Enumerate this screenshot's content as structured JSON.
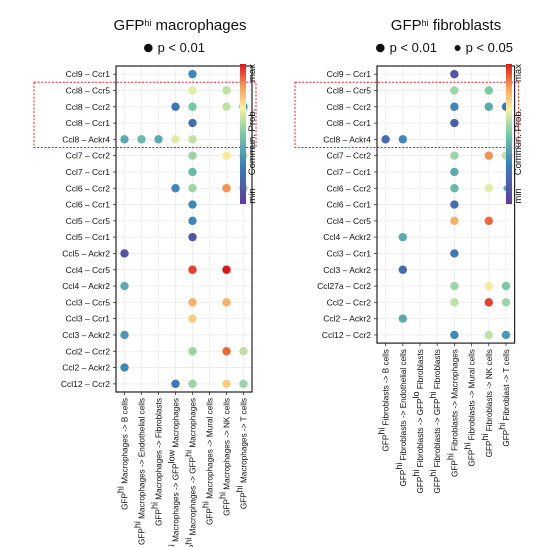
{
  "colors": {
    "low": "#5e3c99",
    "mid": "#f7f3a8",
    "high": "#d7191c",
    "grid": "#ececec",
    "highlight": "#e02020"
  },
  "colorbar": {
    "max_label": "max",
    "min_label": "min",
    "title": "Commun. Prob."
  },
  "chart_data": [
    {
      "type": "scatter",
      "title": {
        "pre": "GFP",
        "sup": "hi",
        "post": " macrophages"
      },
      "legend": [
        {
          "marker": "large",
          "label": "p < 0.01"
        }
      ],
      "rows": [
        "Ccl9 – Ccr1",
        "Ccl8 – Ccr5",
        "Ccl8 – Ccr2",
        "Ccl8 – Ccr1",
        "Ccl8 – Ackr4",
        "Ccl7 – Ccr2",
        "Ccl7 – Ccr1",
        "Ccl6 – Ccr2",
        "Ccl6 – Ccr1",
        "Ccl5 – Ccr5",
        "Ccl5 – Ccr1",
        "Ccl5 – Ackr2",
        "Ccl4 – Ccr5",
        "Ccl4 – Ackr2",
        "Ccl3 – Ccr5",
        "Ccl3 – Ccr1",
        "Ccl3 – Ackr2",
        "Ccl2 – Ccr2",
        "Ccl2 – Ackr2",
        "Ccl12 – Ccr2"
      ],
      "columns": [
        {
          "pre": "GFP",
          "sup": "hi",
          "post": " Macrophages -> B cells"
        },
        {
          "pre": "GFP",
          "sup": "hi",
          "post": " Macrophages -> Endothelial cells"
        },
        {
          "pre": "GFP",
          "sup": "hi",
          "post": " Macrophages -> Fibroblasts"
        },
        {
          "pre": "GFP",
          "sup": "hi",
          "post": " Macrophages -> GFP",
          "sup2": "low",
          "post2": " Macrophages"
        },
        {
          "pre": "GFP",
          "sup": "hi",
          "post": " Macrophages -> GFP",
          "sup2": "hi",
          "post2": " Macrophages"
        },
        {
          "pre": "GFP",
          "sup": "hi",
          "post": " Macrophages -> Mural cells"
        },
        {
          "pre": "GFP",
          "sup": "hi",
          "post": " Macrophages -> NK cells"
        },
        {
          "pre": "GFP",
          "sup": "hi",
          "post": " Macrophages -> T cells"
        }
      ],
      "highlight_rows": [
        1,
        4
      ],
      "points": [
        [
          0,
          4,
          0.3
        ],
        [
          1,
          4,
          0.65
        ],
        [
          1,
          6,
          0.6
        ],
        [
          2,
          3,
          0.25
        ],
        [
          2,
          4,
          0.5
        ],
        [
          2,
          6,
          0.6
        ],
        [
          2,
          7,
          0.35
        ],
        [
          3,
          4,
          0.2
        ],
        [
          4,
          0,
          0.4
        ],
        [
          4,
          1,
          0.45
        ],
        [
          4,
          2,
          0.4
        ],
        [
          4,
          3,
          0.65
        ],
        [
          4,
          4,
          0.6
        ],
        [
          5,
          4,
          0.55
        ],
        [
          5,
          6,
          0.7
        ],
        [
          5,
          7,
          0.6
        ],
        [
          6,
          4,
          0.45
        ],
        [
          7,
          3,
          0.3
        ],
        [
          7,
          4,
          0.55
        ],
        [
          7,
          6,
          0.85
        ],
        [
          7,
          7,
          0.55
        ],
        [
          8,
          4,
          0.3
        ],
        [
          9,
          4,
          0.3
        ],
        [
          10,
          4,
          0.1
        ],
        [
          11,
          0,
          0.1
        ],
        [
          12,
          4,
          0.95
        ],
        [
          12,
          6,
          1.0
        ],
        [
          13,
          0,
          0.4
        ],
        [
          14,
          4,
          0.8
        ],
        [
          14,
          6,
          0.8
        ],
        [
          15,
          4,
          0.75
        ],
        [
          16,
          0,
          0.35
        ],
        [
          17,
          4,
          0.55
        ],
        [
          17,
          6,
          0.9
        ],
        [
          17,
          7,
          0.6
        ],
        [
          18,
          0,
          0.3
        ],
        [
          19,
          3,
          0.25
        ],
        [
          19,
          4,
          0.55
        ],
        [
          19,
          6,
          0.75
        ],
        [
          19,
          7,
          0.55
        ]
      ]
    },
    {
      "type": "scatter",
      "title": {
        "pre": "GFP",
        "sup": "hi",
        "post": " fibroblasts"
      },
      "legend": [
        {
          "marker": "large",
          "label": "p < 0.01"
        },
        {
          "marker": "small",
          "label": "p < 0.05"
        }
      ],
      "rows": [
        "Ccl9 – Ccr1",
        "Ccl8 – Ccr5",
        "Ccl8 – Ccr2",
        "Ccl8 – Ccr1",
        "Ccl8 – Ackr4",
        "Ccl7 – Ccr2",
        "Ccl7 – Ccr1",
        "Ccl6 – Ccr2",
        "Ccl6 – Ccr1",
        "Ccl4 – Ccr5",
        "Ccl4 – Ackr2",
        "Ccl3 – Ccr1",
        "Ccl3 – Ackr2",
        "Ccl27a – Ccr2",
        "Ccl2 – Ccr2",
        "Ccl2 – Ackr2",
        "Ccl12 – Ccr2"
      ],
      "columns": [
        {
          "pre": "GFP",
          "sup": "hi",
          "post": " Fibroblasts -> B cells"
        },
        {
          "pre": "GFP",
          "sup": "hi",
          "post": " Fibroblasts -> Endothelial cells"
        },
        {
          "pre": "GFP",
          "sup": "hi",
          "post": " Fibroblasts -> GFP",
          "sup2": "lo",
          "post2": " Fibroblasts"
        },
        {
          "pre": "GFP",
          "sup": "hi",
          "post": " Fibroblasts -> GFP",
          "sup2": "hi",
          "post2": " Fibroblasts"
        },
        {
          "pre": "GFP",
          "sup": "hi",
          "post": " Fibroblasts -> Macrophages"
        },
        {
          "pre": "GFP",
          "sup": "hi",
          "post": " Fibroblasts -> Mural cells"
        },
        {
          "pre": "GFP",
          "sup": "hi",
          "post": " Fibroblasts -> NK cells"
        },
        {
          "pre": "GFP",
          "sup": "hi",
          "post": " Fibroblast -> T cells"
        }
      ],
      "highlight_rows": [
        1,
        4
      ],
      "points": [
        [
          0,
          4,
          0.1
        ],
        [
          1,
          4,
          0.55
        ],
        [
          1,
          6,
          0.5
        ],
        [
          2,
          4,
          0.3
        ],
        [
          2,
          6,
          0.4
        ],
        [
          2,
          7,
          0.25
        ],
        [
          3,
          4,
          0.15
        ],
        [
          4,
          0,
          0.2
        ],
        [
          4,
          1,
          0.3
        ],
        [
          5,
          4,
          0.55
        ],
        [
          5,
          6,
          0.85
        ],
        [
          5,
          7,
          0.6
        ],
        [
          6,
          4,
          0.4
        ],
        [
          7,
          4,
          0.45
        ],
        [
          7,
          6,
          0.65
        ],
        [
          7,
          7,
          0.4,
          "small"
        ],
        [
          8,
          4,
          0.2
        ],
        [
          9,
          4,
          0.8
        ],
        [
          9,
          6,
          0.9
        ],
        [
          10,
          1,
          0.4
        ],
        [
          11,
          4,
          0.25
        ],
        [
          12,
          1,
          0.2
        ],
        [
          13,
          4,
          0.55
        ],
        [
          13,
          6,
          0.7
        ],
        [
          13,
          7,
          0.5
        ],
        [
          14,
          4,
          0.6
        ],
        [
          14,
          6,
          0.95
        ],
        [
          14,
          7,
          0.55
        ],
        [
          15,
          1,
          0.4
        ],
        [
          16,
          4,
          0.3
        ],
        [
          16,
          6,
          0.6
        ],
        [
          16,
          7,
          0.35
        ]
      ]
    }
  ]
}
